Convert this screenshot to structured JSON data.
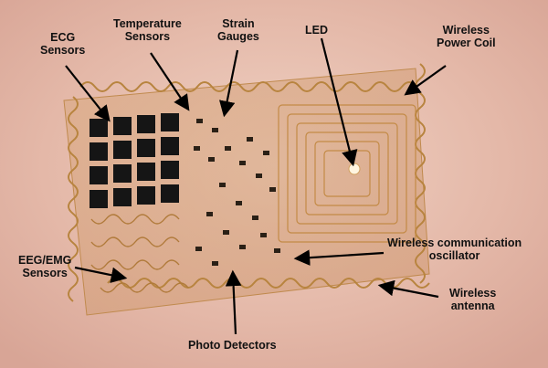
{
  "labels": {
    "ecg": [
      "ECG",
      "Sensors"
    ],
    "temperature": [
      "Temperature",
      "Sensors"
    ],
    "strain": [
      "Strain",
      "Gauges"
    ],
    "led": [
      "LED"
    ],
    "power_coil": [
      "Wireless",
      "Power Coil"
    ],
    "eeg_emg": [
      "EEG/EMG",
      "Sensors"
    ],
    "oscillator": [
      "Wireless communication",
      "oscillator"
    ],
    "antenna": [
      "Wireless",
      "antenna"
    ],
    "photo_detectors": [
      "Photo Detectors"
    ]
  },
  "colors": {
    "skin": "#e6bfb1",
    "gold": "#c8963c",
    "sensor_black": "#151515",
    "arrow": "#000000"
  }
}
